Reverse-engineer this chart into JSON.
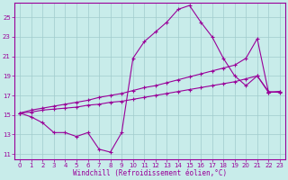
{
  "xlabel": "Windchill (Refroidissement éolien,°C)",
  "xlim": [
    -0.5,
    23.5
  ],
  "ylim": [
    10.5,
    26.5
  ],
  "yticks": [
    11,
    13,
    15,
    17,
    19,
    21,
    23,
    25
  ],
  "xticks": [
    0,
    1,
    2,
    3,
    4,
    5,
    6,
    7,
    8,
    9,
    10,
    11,
    12,
    13,
    14,
    15,
    16,
    17,
    18,
    19,
    20,
    21,
    22,
    23
  ],
  "bg_color": "#c8ecea",
  "line_color": "#990099",
  "grid_color": "#a0cccc",
  "series0_x": [
    0,
    1,
    2,
    3,
    4,
    5,
    6,
    7,
    8,
    9,
    10,
    11,
    12,
    13,
    14,
    15,
    16,
    17,
    18,
    19,
    20,
    21,
    22,
    23
  ],
  "series0_y": [
    15.2,
    14.8,
    14.2,
    13.2,
    13.2,
    12.8,
    13.2,
    11.5,
    11.2,
    13.2,
    20.8,
    22.5,
    23.5,
    24.5,
    25.8,
    26.2,
    24.5,
    23.0,
    20.8,
    19.0,
    18.0,
    19.0,
    17.4,
    17.3
  ],
  "series1_x": [
    0,
    1,
    2,
    3,
    4,
    5,
    6,
    7,
    8,
    9,
    10,
    11,
    12,
    13,
    14,
    15,
    16,
    17,
    18,
    19,
    20,
    21,
    22,
    23
  ],
  "series1_y": [
    15.2,
    15.3,
    15.5,
    15.6,
    15.7,
    15.8,
    16.0,
    16.1,
    16.3,
    16.4,
    16.6,
    16.8,
    17.0,
    17.2,
    17.4,
    17.6,
    17.8,
    18.0,
    18.2,
    18.4,
    18.7,
    19.0,
    17.3,
    17.4
  ],
  "series2_x": [
    0,
    1,
    2,
    3,
    4,
    5,
    6,
    7,
    8,
    9,
    10,
    11,
    12,
    13,
    14,
    15,
    16,
    17,
    18,
    19,
    20,
    21,
    22,
    23
  ],
  "series2_y": [
    15.2,
    15.5,
    15.7,
    15.9,
    16.1,
    16.3,
    16.5,
    16.8,
    17.0,
    17.2,
    17.5,
    17.8,
    18.0,
    18.3,
    18.6,
    18.9,
    19.2,
    19.5,
    19.8,
    20.1,
    20.8,
    22.8,
    17.3,
    17.4
  ]
}
